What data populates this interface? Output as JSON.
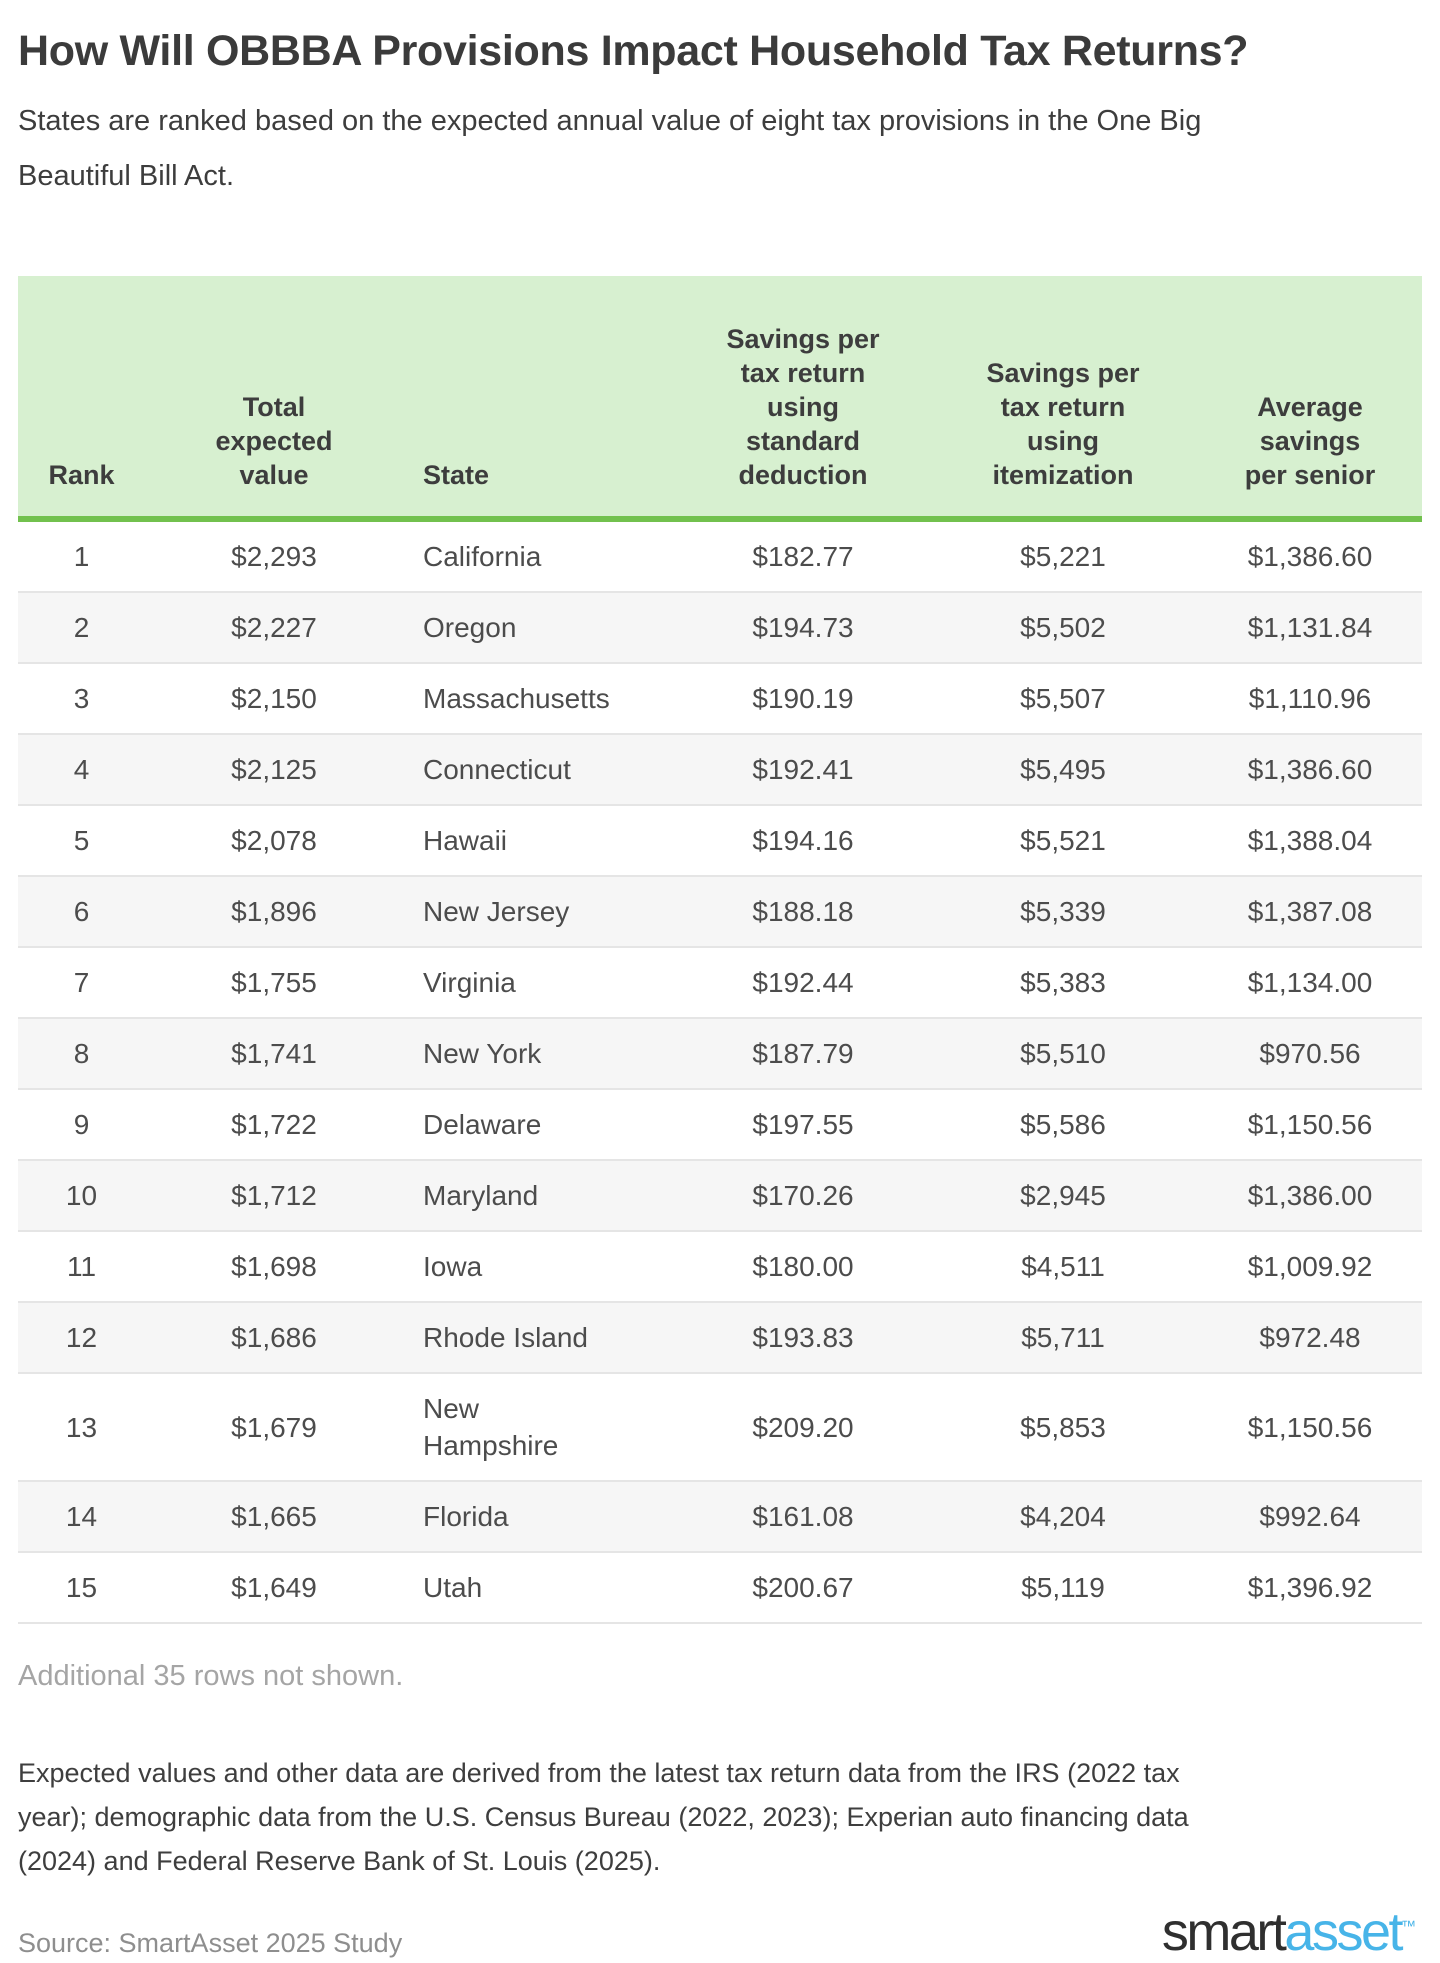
{
  "title": "How Will OBBBA Provisions Impact Household Tax Returns?",
  "subtitle": "States are ranked based on the expected annual value of eight tax provisions in the One Big Beautiful Bill Act.",
  "chart_data": {
    "type": "table",
    "title": "How Will OBBBA Provisions Impact Household Tax Returns?",
    "columns": [
      "Rank",
      "Total expected value",
      "State",
      "Savings per tax return using standard deduction",
      "Savings per tax return using itemization",
      "Average savings per senior"
    ],
    "rows": [
      [
        "1",
        "$2,293",
        "California",
        "$182.77",
        "$5,221",
        "$1,386.60"
      ],
      [
        "2",
        "$2,227",
        "Oregon",
        "$194.73",
        "$5,502",
        "$1,131.84"
      ],
      [
        "3",
        "$2,150",
        "Massachusetts",
        "$190.19",
        "$5,507",
        "$1,110.96"
      ],
      [
        "4",
        "$2,125",
        "Connecticut",
        "$192.41",
        "$5,495",
        "$1,386.60"
      ],
      [
        "5",
        "$2,078",
        "Hawaii",
        "$194.16",
        "$5,521",
        "$1,388.04"
      ],
      [
        "6",
        "$1,896",
        "New Jersey",
        "$188.18",
        "$5,339",
        "$1,387.08"
      ],
      [
        "7",
        "$1,755",
        "Virginia",
        "$192.44",
        "$5,383",
        "$1,134.00"
      ],
      [
        "8",
        "$1,741",
        "New York",
        "$187.79",
        "$5,510",
        "$970.56"
      ],
      [
        "9",
        "$1,722",
        "Delaware",
        "$197.55",
        "$5,586",
        "$1,150.56"
      ],
      [
        "10",
        "$1,712",
        "Maryland",
        "$170.26",
        "$2,945",
        "$1,386.00"
      ],
      [
        "11",
        "$1,698",
        "Iowa",
        "$180.00",
        "$4,511",
        "$1,009.92"
      ],
      [
        "12",
        "$1,686",
        "Rhode Island",
        "$193.83",
        "$5,711",
        "$972.48"
      ],
      [
        "13",
        "$1,679",
        "New Hampshire",
        "$209.20",
        "$5,853",
        "$1,150.56"
      ],
      [
        "14",
        "$1,665",
        "Florida",
        "$161.08",
        "$4,204",
        "$992.64"
      ],
      [
        "15",
        "$1,649",
        "Utah",
        "$200.67",
        "$5,119",
        "$1,396.92"
      ]
    ]
  },
  "note": "Additional 35 rows not shown.",
  "methodology": "Expected values and other data are derived from the latest tax return data from the IRS (2022 tax year); demographic data from the U.S. Census Bureau (2022, 2023); Experian auto financing data (2024) and Federal Reserve Bank of St. Louis (2025).",
  "source": "Source: SmartAsset 2025 Study",
  "logo": {
    "smart": "smart",
    "asset": "asset",
    "tm": "TM"
  },
  "colors": {
    "header_green": "#d7f0d0",
    "border_green": "#72c14e",
    "stripe_gray": "#f6f6f6",
    "logo_blue": "#47b4e8"
  }
}
